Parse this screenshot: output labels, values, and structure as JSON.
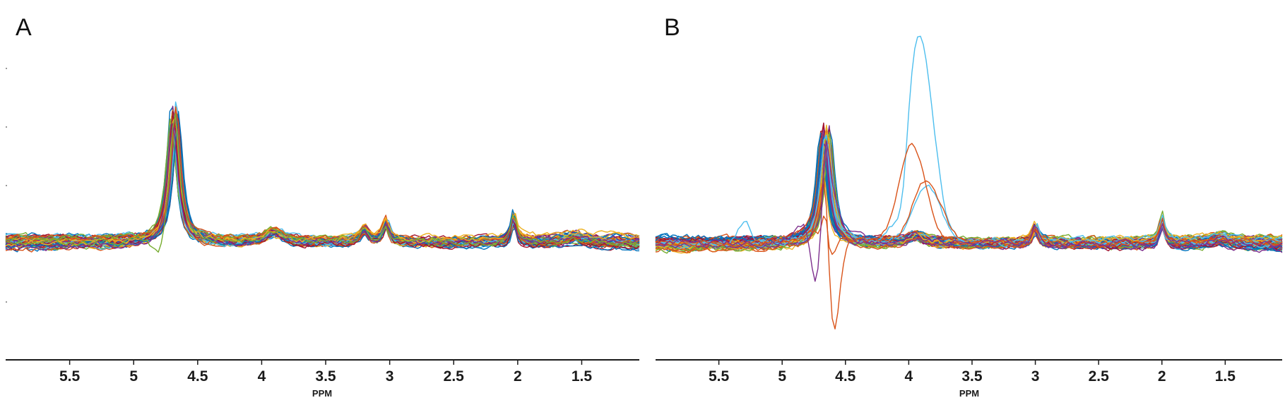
{
  "chart_data": [
    {
      "panel": "A",
      "type": "line",
      "description_units": "ppm",
      "xlabel": "PPM",
      "xlim": [
        6.0,
        1.05
      ],
      "xticks": [
        5.5,
        5,
        4.5,
        4,
        3.5,
        3,
        2.5,
        2,
        1.5
      ],
      "xtick_labels": [
        "5.5",
        "5",
        "4.5",
        "4",
        "3.5",
        "3",
        "2.5",
        "2",
        "1.5"
      ],
      "ylim": [
        -1.0,
        1.2
      ],
      "series_count": 60,
      "peaks": [
        {
          "ppm": 4.68,
          "height": 1.0,
          "width": 0.045,
          "shift_spread": 0.03
        },
        {
          "ppm": 3.9,
          "height": 0.08,
          "width": 0.08,
          "shift_spread": 0.02
        },
        {
          "ppm": 3.2,
          "height": 0.1,
          "width": 0.035,
          "shift_spread": 0.01
        },
        {
          "ppm": 3.03,
          "height": 0.15,
          "width": 0.03,
          "shift_spread": 0.01
        },
        {
          "ppm": 2.03,
          "height": 0.21,
          "width": 0.022,
          "shift_spread": 0.005
        },
        {
          "ppm": 1.55,
          "height": 0.04,
          "width": 0.08,
          "shift_spread": 0.02
        }
      ],
      "outliers": [
        {
          "color": "#77ac30",
          "dip_ppm": 4.8,
          "dip_depth": -0.19
        }
      ]
    },
    {
      "panel": "B",
      "type": "line",
      "xlabel": "PPM",
      "xlim": [
        6.0,
        1.05
      ],
      "xticks": [
        5.5,
        5,
        4.5,
        4,
        3.5,
        3,
        2.5,
        2,
        1.5
      ],
      "xtick_labels": [
        "5.5",
        "5",
        "4.5",
        "4",
        "3.5",
        "3",
        "2.5",
        "2",
        "1.5"
      ],
      "ylim": [
        -1.0,
        1.2
      ],
      "series_count": 60,
      "peaks": [
        {
          "ppm": 4.66,
          "height": 0.86,
          "width": 0.045,
          "shift_spread": 0.04
        },
        {
          "ppm": 3.95,
          "height": 0.06,
          "width": 0.08,
          "shift_spread": 0.02
        },
        {
          "ppm": 3.0,
          "height": 0.12,
          "width": 0.03,
          "shift_spread": 0.01
        },
        {
          "ppm": 2.0,
          "height": 0.18,
          "width": 0.022,
          "shift_spread": 0.005
        },
        {
          "ppm": 1.55,
          "height": 0.04,
          "width": 0.08,
          "shift_spread": 0.02
        }
      ],
      "outliers": [
        {
          "color": "#4dbeee",
          "peak_ppm": 3.92,
          "peak_height": 1.55,
          "dip_ppm": 4.05,
          "dip_depth": -0.43
        },
        {
          "color": "#4dbeee",
          "peak_ppm": 3.85,
          "peak_height": 0.4,
          "dip_ppm": 5.3,
          "dip_depth": 0.15
        },
        {
          "color": "#d95319",
          "peak_ppm": 3.97,
          "peak_height": 0.68,
          "dip_ppm": 4.6,
          "dip_depth": -0.92
        },
        {
          "color": "#d95319",
          "peak_ppm": 3.85,
          "peak_height": 0.45,
          "dip_ppm": 4.65,
          "dip_depth": -0.65
        },
        {
          "color": "#7e2f8e",
          "peak_ppm": 4.7,
          "peak_height": 0.3,
          "dip_ppm": 4.72,
          "dip_depth": -0.82
        }
      ]
    }
  ],
  "palette": [
    "#0072bd",
    "#d95319",
    "#edb120",
    "#7e2f8e",
    "#77ac30",
    "#4dbeee",
    "#a2142f"
  ]
}
